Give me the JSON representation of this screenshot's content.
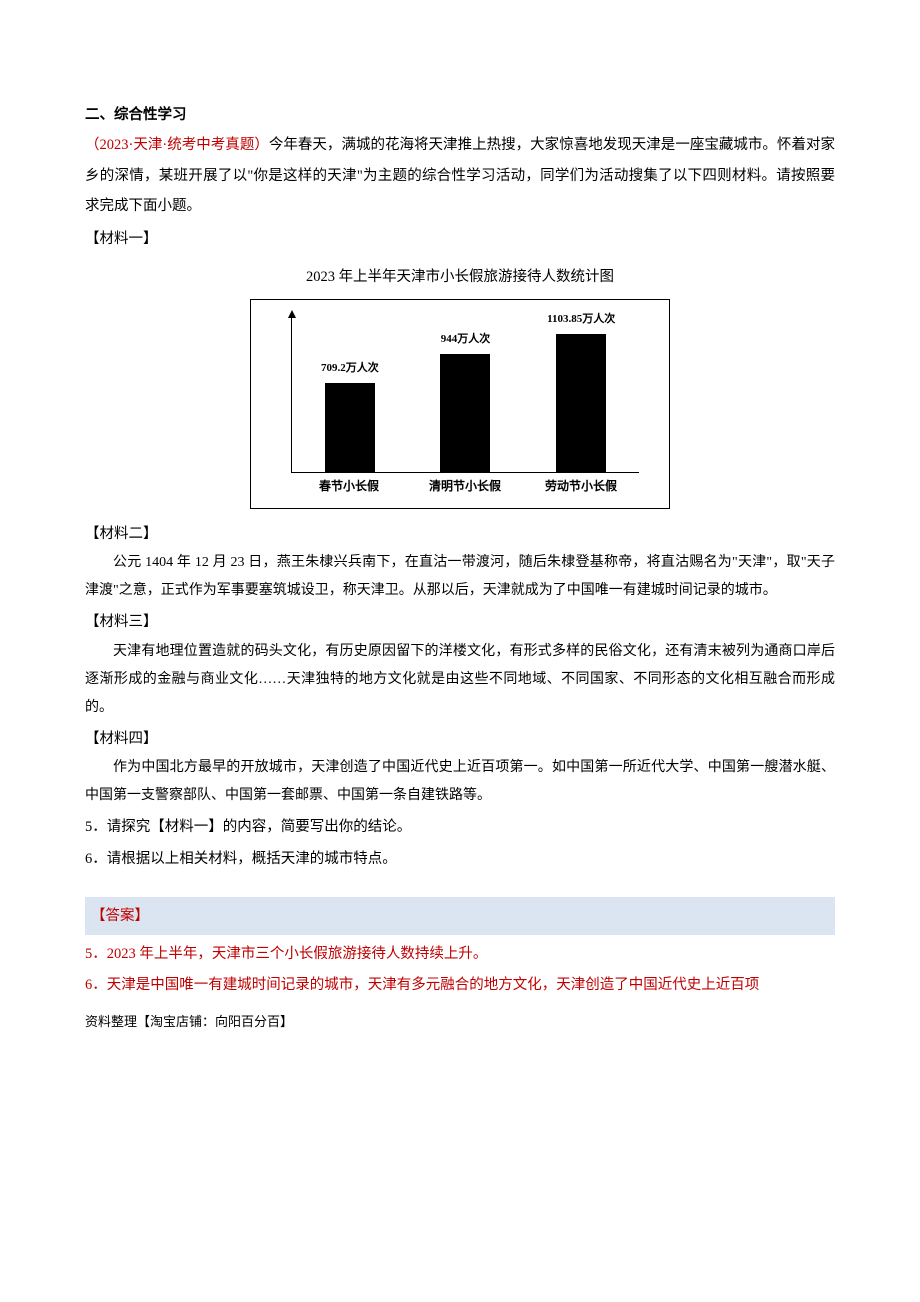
{
  "section_heading": "二、综合性学习",
  "source": "（2023·天津·统考中考真题）",
  "intro": "今年春天，满城的花海将天津推上热搜，大家惊喜地发现天津是一座宝藏城市。怀着对家乡的深情，某班开展了以\"你是这样的天津\"为主题的综合性学习活动，同学们为活动搜集了以下四则材料。请按照要求完成下面小题。",
  "materials": {
    "m1": {
      "label": "【材料一】",
      "chart": {
        "type": "bar",
        "title": "2023 年上半年天津市小长假旅游接待人数统计图",
        "categories": [
          "春节小长假",
          "清明节小长假",
          "劳动节小长假"
        ],
        "values": [
          709.2,
          944,
          1103.85
        ],
        "value_labels": [
          "709.2万人次",
          "944万人次",
          "1103.85万人次"
        ],
        "max_value": 1200,
        "bar_color": "#000000",
        "border_color": "#000000",
        "background_color": "#ffffff"
      }
    },
    "m2": {
      "label": "【材料二】",
      "body": "公元 1404 年 12 月 23 日，燕王朱棣兴兵南下，在直沽一带渡河，随后朱棣登基称帝，将直沽赐名为\"天津\"，取\"天子津渡\"之意，正式作为军事要塞筑城设卫，称天津卫。从那以后，天津就成为了中国唯一有建城时间记录的城市。"
    },
    "m3": {
      "label": "【材料三】",
      "body": "天津有地理位置造就的码头文化，有历史原因留下的洋楼文化，有形式多样的民俗文化，还有清末被列为通商口岸后逐渐形成的金融与商业文化……天津独特的地方文化就是由这些不同地域、不同国家、不同形态的文化相互融合而形成的。"
    },
    "m4": {
      "label": "【材料四】",
      "body": "作为中国北方最早的开放城市，天津创造了中国近代史上近百项第一。如中国第一所近代大学、中国第一艘潜水艇、中国第一支警察部队、中国第一套邮票、中国第一条自建铁路等。"
    }
  },
  "questions": {
    "q5": "5．请探究【材料一】的内容，简要写出你的结论。",
    "q6": "6．请根据以上相关材料，概括天津的城市特点。"
  },
  "answers": {
    "header": "【答案】",
    "a5": "5．2023 年上半年，天津市三个小长假旅游接待人数持续上升。",
    "a6": "6．天津是中国唯一有建城时间记录的城市，天津有多元融合的地方文化，天津创造了中国近代史上近百项"
  },
  "footer": "资料整理【淘宝店铺：向阳百分百】"
}
